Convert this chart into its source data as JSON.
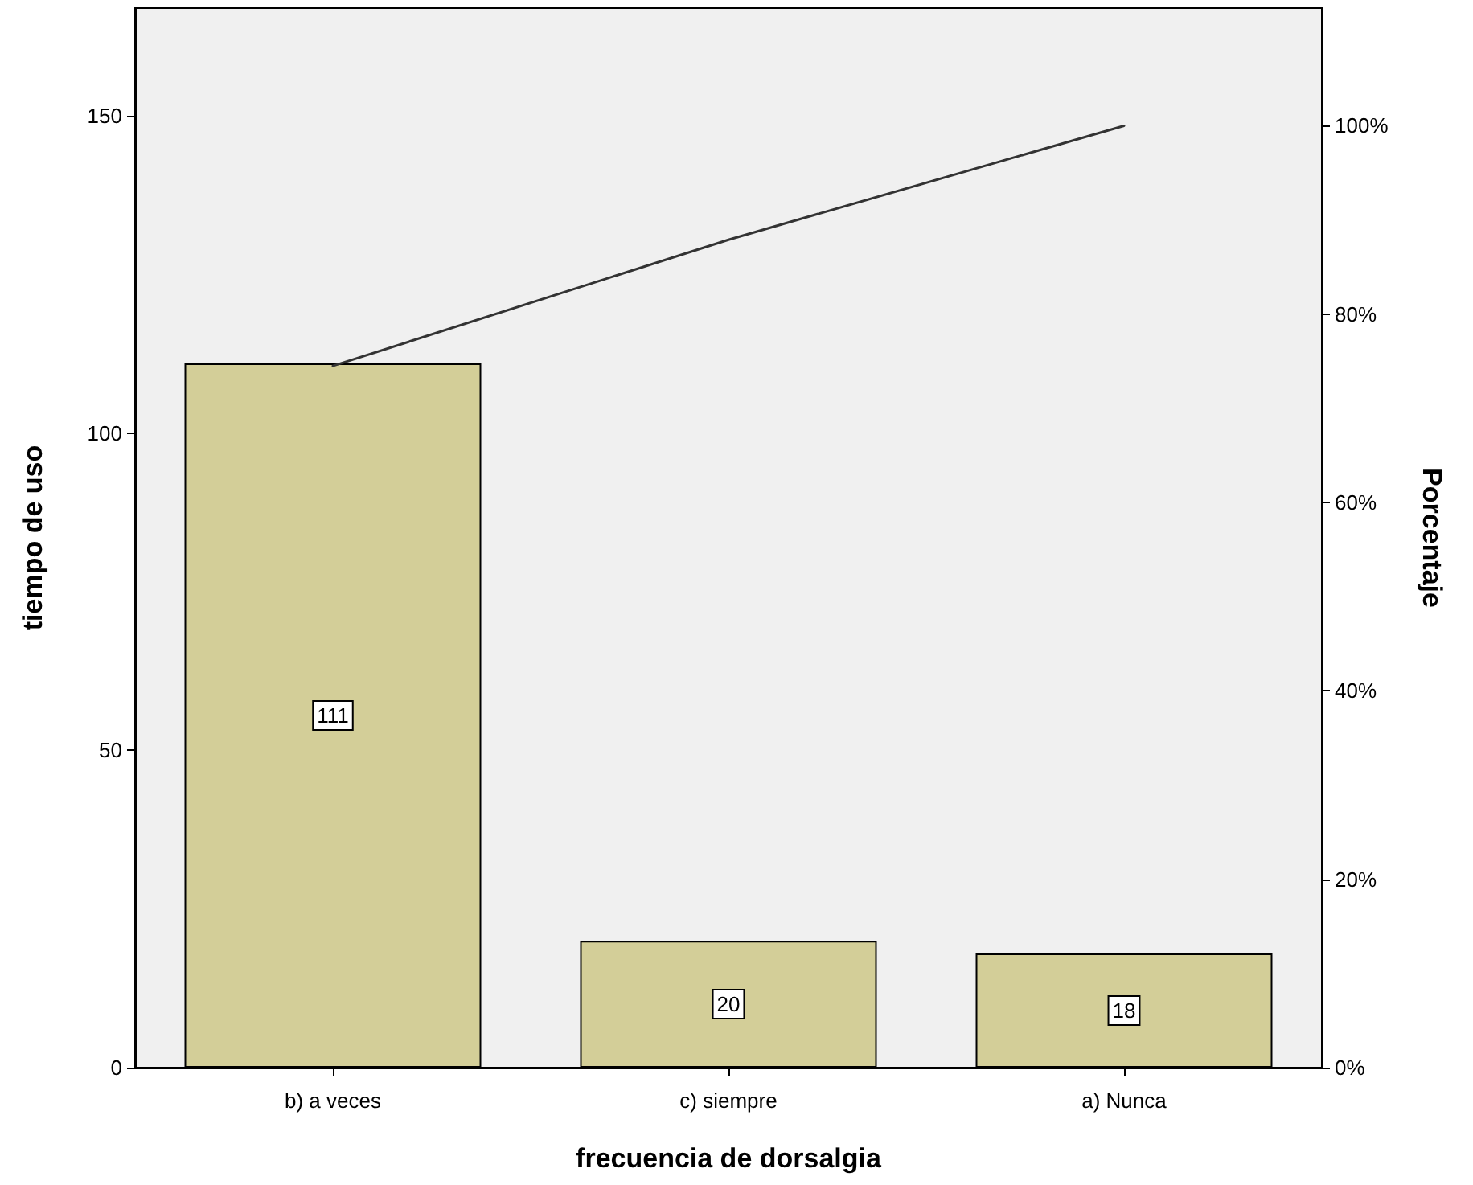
{
  "chart_data": {
    "type": "bar",
    "xlabel": "frecuencia de dorsalgia",
    "ylabel": "tiempo de uso",
    "y2label": "Porcentaje",
    "categories": [
      "b) a veces",
      "c) siempre",
      "a) Nunca"
    ],
    "series": [
      {
        "color": "#d3ce98",
        "values": [
          111,
          20,
          18
        ],
        "value_labels": [
          "111",
          "20",
          "18"
        ]
      },
      {
        "type": "line",
        "axis": "y2",
        "color": "#333333",
        "values": [
          74.5,
          87.9,
          100
        ]
      }
    ],
    "ylim": [
      0,
      167
    ],
    "yticks": [
      0,
      50,
      100,
      150
    ],
    "y2lim": [
      0,
      112.5
    ],
    "y2ticks": [
      {
        "value": 0,
        "label": "0%"
      },
      {
        "value": 20,
        "label": "20%"
      },
      {
        "value": 40,
        "label": "40%"
      },
      {
        "value": 60,
        "label": "60%"
      },
      {
        "value": 80,
        "label": "80%"
      },
      {
        "value": 100,
        "label": "100%"
      }
    ],
    "grid": false,
    "marker": "none",
    "line_style": "solid"
  }
}
